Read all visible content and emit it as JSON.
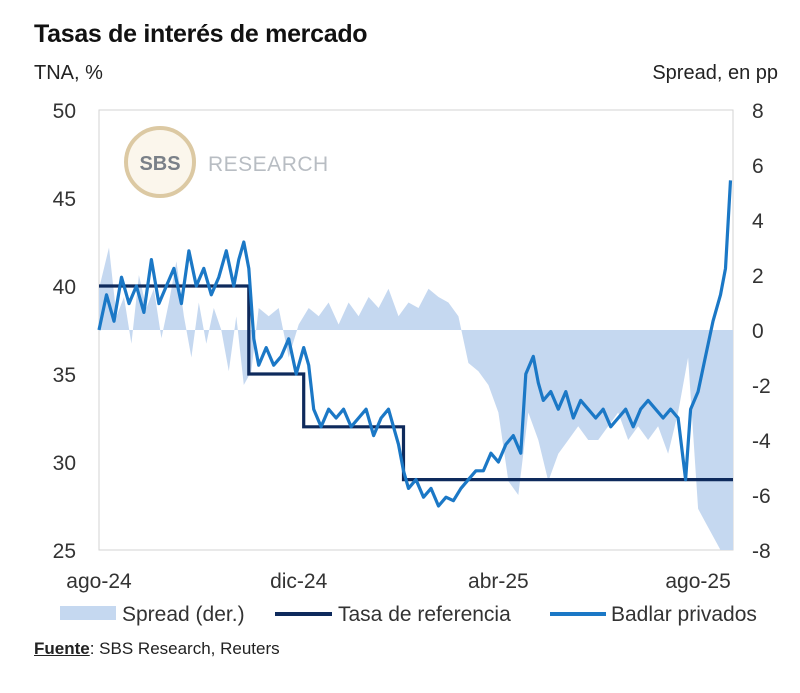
{
  "title": "Tasas de interés de mercado",
  "left_unit": "TNA, %",
  "right_unit": "Spread, en pp",
  "source_label": "Fuente",
  "source_text": ": SBS Research, Reuters",
  "watermark": {
    "logo_text": "SBS",
    "text": "RESEARCH"
  },
  "colors": {
    "spread": "#c5d8f0",
    "reference": "#0e2a5c",
    "badlar": "#1b78c6"
  },
  "chart_data": {
    "type": "line",
    "x_labels": [
      "ago-24",
      "dic-24",
      "abr-25",
      "ago-25"
    ],
    "x_label_positions": [
      0,
      4,
      8,
      12
    ],
    "x_range": [
      0,
      12.7
    ],
    "left_axis": {
      "label": "TNA, %",
      "range": [
        25,
        50
      ],
      "ticks": [
        25,
        30,
        35,
        40,
        45,
        50
      ]
    },
    "right_axis": {
      "label": "Spread, en pp",
      "range": [
        -8,
        8
      ],
      "ticks": [
        -8,
        -6,
        -4,
        -2,
        0,
        2,
        4,
        6,
        8
      ]
    },
    "legend": [
      {
        "name": "Spread (der.)",
        "kind": "area"
      },
      {
        "name": "Tasa de referencia",
        "kind": "line-dark"
      },
      {
        "name": "Badlar privados",
        "kind": "line-blue"
      }
    ],
    "series": [
      {
        "name": "Tasa de referencia",
        "axis": "left",
        "x": [
          0,
          3.0,
          3.0,
          4.1,
          4.1,
          6.1,
          6.1,
          12.7
        ],
        "values": [
          40,
          40,
          35,
          35,
          32,
          32,
          29,
          29
        ]
      },
      {
        "name": "Badlar privados",
        "axis": "left",
        "x": [
          0,
          0.15,
          0.3,
          0.45,
          0.6,
          0.75,
          0.9,
          1.05,
          1.2,
          1.35,
          1.5,
          1.65,
          1.8,
          1.95,
          2.1,
          2.25,
          2.4,
          2.55,
          2.7,
          2.8,
          2.9,
          3.0,
          3.1,
          3.2,
          3.35,
          3.5,
          3.65,
          3.8,
          3.95,
          4.1,
          4.2,
          4.3,
          4.45,
          4.6,
          4.75,
          4.9,
          5.05,
          5.2,
          5.35,
          5.5,
          5.65,
          5.8,
          5.9,
          6.0,
          6.1,
          6.2,
          6.35,
          6.5,
          6.65,
          6.8,
          6.95,
          7.1,
          7.25,
          7.4,
          7.55,
          7.7,
          7.85,
          8.0,
          8.15,
          8.3,
          8.45,
          8.55,
          8.7,
          8.8,
          8.9,
          9.05,
          9.2,
          9.35,
          9.5,
          9.65,
          9.8,
          9.95,
          10.1,
          10.25,
          10.4,
          10.55,
          10.7,
          10.85,
          11.0,
          11.15,
          11.3,
          11.45,
          11.6,
          11.75,
          11.85,
          12.0,
          12.15,
          12.3,
          12.45,
          12.55,
          12.65
        ],
        "values": [
          37.5,
          39.5,
          38,
          40.5,
          39,
          40,
          38.5,
          41.5,
          39,
          40,
          41,
          39,
          42,
          40,
          41,
          39.5,
          40.5,
          42,
          40,
          41.5,
          42.5,
          41,
          37,
          35.5,
          36.5,
          35.5,
          36,
          37,
          35,
          36.5,
          35.5,
          33,
          32,
          33,
          32.5,
          33,
          32,
          32.5,
          33,
          31.5,
          32.5,
          33,
          32,
          31,
          29.5,
          28.5,
          29,
          28,
          28.5,
          27.5,
          28,
          27.8,
          28.5,
          29,
          29.5,
          29.5,
          30.5,
          30,
          31,
          31.5,
          30.5,
          35,
          36,
          34.5,
          33.5,
          34,
          33,
          34,
          32.5,
          33.5,
          33,
          32.5,
          33,
          32,
          32.5,
          33,
          32,
          33,
          33.5,
          33,
          32.5,
          33,
          32.5,
          29,
          33,
          34,
          36,
          38,
          39.5,
          41,
          46
        ]
      },
      {
        "name": "Spread (der.)",
        "axis": "right",
        "kind": "area",
        "x": [
          0,
          0.2,
          0.35,
          0.5,
          0.65,
          0.8,
          0.95,
          1.1,
          1.25,
          1.4,
          1.55,
          1.7,
          1.85,
          2.0,
          2.15,
          2.3,
          2.45,
          2.6,
          2.75,
          2.9,
          3.05,
          3.2,
          3.4,
          3.6,
          3.8,
          4.0,
          4.2,
          4.4,
          4.6,
          4.8,
          5.0,
          5.2,
          5.4,
          5.6,
          5.8,
          6.0,
          6.2,
          6.4,
          6.6,
          6.8,
          7.0,
          7.2,
          7.4,
          7.6,
          7.8,
          8.0,
          8.2,
          8.4,
          8.6,
          8.8,
          9.0,
          9.2,
          9.4,
          9.6,
          9.8,
          10.0,
          10.2,
          10.4,
          10.6,
          10.8,
          11.0,
          11.2,
          11.4,
          11.6,
          11.8,
          12.0,
          12.15,
          12.3,
          12.45,
          12.6,
          12.7
        ],
        "values": [
          1.5,
          3.0,
          0.5,
          1.2,
          -0.5,
          2.0,
          0.8,
          1.5,
          -0.3,
          1.0,
          2.5,
          0.5,
          -1.0,
          1.0,
          -0.5,
          0.8,
          0,
          -1.5,
          0.5,
          -2.0,
          -1.5,
          0.8,
          0.5,
          0.8,
          -1.0,
          0.2,
          0.8,
          0.5,
          1.0,
          0.2,
          1.0,
          0.5,
          1.2,
          0.8,
          1.5,
          0.5,
          1.0,
          0.8,
          1.5,
          1.2,
          1.0,
          0.5,
          -1.2,
          -1.5,
          -2.0,
          -3.0,
          -5.5,
          -6.0,
          -3.0,
          -4.0,
          -5.5,
          -4.5,
          -4.0,
          -3.5,
          -4.0,
          -4.0,
          -3.5,
          -3.0,
          -4.0,
          -3.5,
          -4.0,
          -3.5,
          -4.5,
          -3.0,
          -1.0,
          -6.5,
          -7.0,
          -7.5,
          -8.0,
          -8.0,
          -8.0
        ]
      }
    ]
  }
}
